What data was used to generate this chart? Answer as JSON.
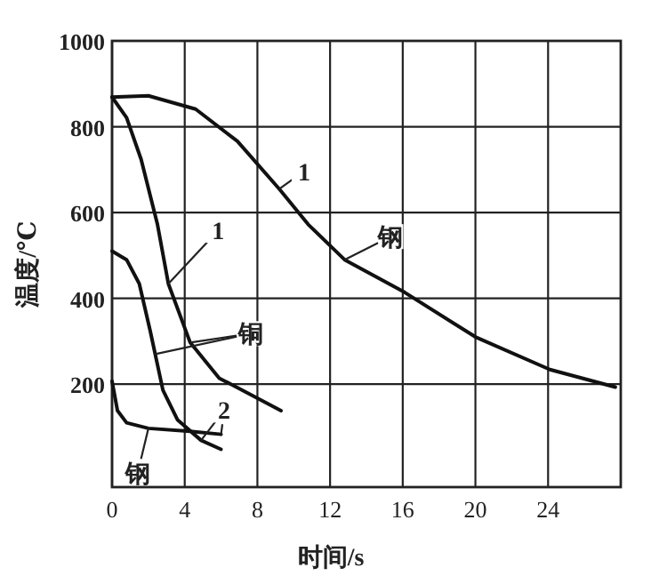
{
  "chart_data": {
    "type": "line",
    "xlabel": "时间/s",
    "ylabel": "温度/℃",
    "xlim": [
      0,
      28
    ],
    "ylim": [
      -40,
      1000
    ],
    "xticks": [
      0,
      4,
      8,
      12,
      16,
      20,
      24
    ],
    "yticks": [
      200,
      400,
      600,
      800,
      1000
    ],
    "grid": true,
    "marker": "none",
    "line_style": "solid",
    "series": [
      {
        "color": "#111111",
        "x": [
          0,
          2,
          4.6,
          6.9,
          9.2,
          10.8,
          12.8,
          16.1,
          20,
          24.1,
          27.7
        ],
        "values": [
          869,
          872,
          841,
          766,
          655,
          572,
          490,
          414,
          310,
          234,
          193
        ]
      },
      {
        "color": "#111111",
        "x": [
          0,
          0.8,
          1.6,
          2.5,
          3.1,
          4.3,
          5.9,
          9.3
        ],
        "values": [
          869,
          821,
          724,
          572,
          434,
          297,
          214,
          138
        ]
      },
      {
        "color": "#111111",
        "x": [
          0,
          0.8,
          1.5,
          2.1,
          2.8,
          3.6,
          4.9,
          6.0
        ],
        "values": [
          510,
          490,
          434,
          324,
          186,
          117,
          69,
          48
        ]
      },
      {
        "color": "#111111",
        "x": [
          0,
          0.3,
          0.8,
          2,
          4.3,
          6
        ],
        "values": [
          207,
          138,
          110,
          97,
          90,
          83
        ]
      }
    ],
    "annotations": [
      {
        "text": "1",
        "x": 9.2,
        "y": 655
      },
      {
        "text": "1",
        "x": 3.1,
        "y": 434
      },
      {
        "text": "铜",
        "x": 4.3,
        "y": 297
      },
      {
        "text": "2",
        "x": 4.9,
        "y": 69
      },
      {
        "text": "钢",
        "x": 12.8,
        "y": 490
      },
      {
        "text": "钢",
        "x": 2,
        "y": 97
      }
    ]
  }
}
